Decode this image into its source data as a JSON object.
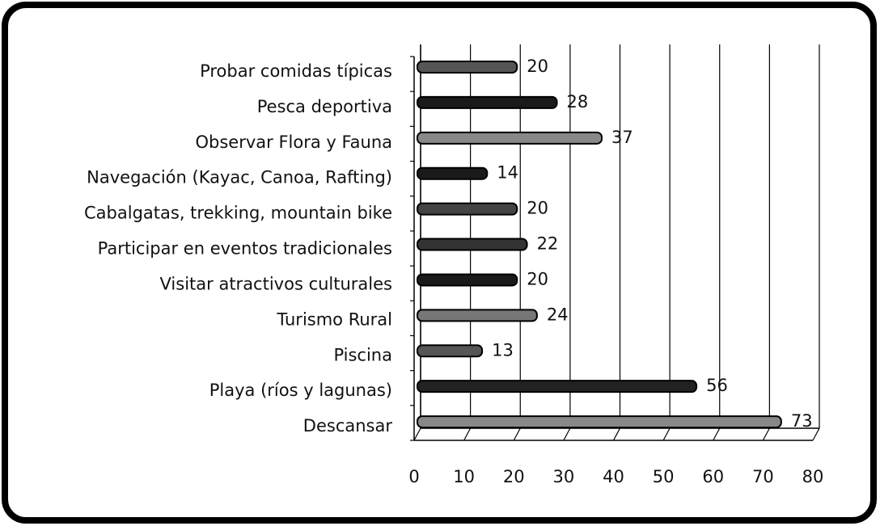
{
  "chart_data": {
    "type": "bar",
    "orientation": "horizontal",
    "categories": [
      "Probar comidas típicas",
      "Pesca deportiva",
      "Observar Flora y Fauna",
      "Navegación (Kayac, Canoa, Rafting)",
      "Cabalgatas, trekking, mountain bike",
      "Participar en eventos tradicionales",
      "Visitar atractivos culturales",
      "Turismo Rural",
      "Piscina",
      "Playa (ríos y lagunas)",
      "Descansar"
    ],
    "values": [
      20,
      28,
      37,
      14,
      20,
      22,
      20,
      24,
      13,
      56,
      73
    ],
    "colors": [
      "#555555",
      "#1a1a1a",
      "#888888",
      "#1a1a1a",
      "#444444",
      "#333333",
      "#1a1a1a",
      "#777777",
      "#555555",
      "#222222",
      "#888888"
    ],
    "xlim": [
      0,
      80
    ],
    "xticks": [
      0,
      10,
      20,
      30,
      40,
      50,
      60,
      70,
      80
    ],
    "grid": true
  }
}
